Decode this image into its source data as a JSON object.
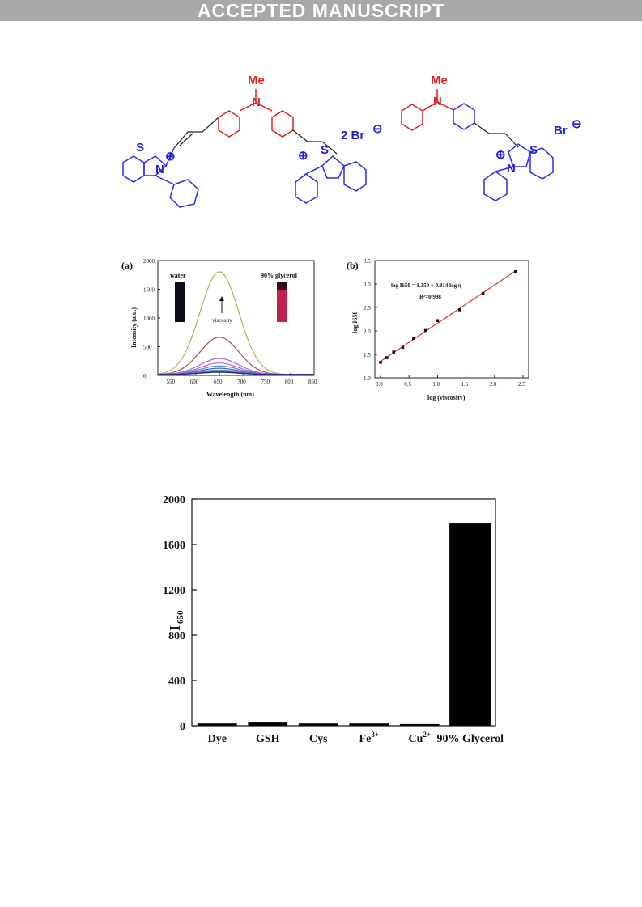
{
  "banner": {
    "text": "ACCEPTED MANUSCRIPT"
  },
  "structures": {
    "left": {
      "me_label": "Me",
      "n_label": "N",
      "s_label": "S",
      "charge": "⊕",
      "counterion": "2 Br",
      "anion": "⊖"
    },
    "right": {
      "me_label": "Me",
      "n_label": "N",
      "s_label": "S",
      "charge": "⊕",
      "counterion": "Br",
      "anion": "⊖"
    }
  },
  "figure_a": {
    "panel_label": "(a)",
    "inset_left": "water",
    "inset_right": "90% glycerol",
    "arrow_label": "viscosity"
  },
  "figure_b": {
    "panel_label": "(b)",
    "equation": "log I650 = 1.350 + 0.814 log η",
    "r2": "R²=0.998"
  },
  "chart_data": [
    {
      "type": "line",
      "panel": "(a)",
      "xlabel": "Wavelength (nm)",
      "ylabel": "Intensity (a.u.)",
      "xlim": [
        520,
        850
      ],
      "ylim": [
        0,
        2000
      ],
      "xticks": [
        550,
        600,
        650,
        700,
        750,
        800,
        850
      ],
      "yticks": [
        0,
        500,
        1000,
        1500,
        2000
      ],
      "series": [
        {
          "peak": 1790,
          "color": "#b5ad5a"
        },
        {
          "peak": 650,
          "color": "#a0524e"
        },
        {
          "peak": 280,
          "color": "#a066c8"
        },
        {
          "peak": 200,
          "color": "#d060d0"
        },
        {
          "peak": 150,
          "color": "#4d8fdc"
        },
        {
          "peak": 110,
          "color": "#5050c8"
        },
        {
          "peak": 80,
          "color": "#40b0b0"
        },
        {
          "peak": 55,
          "color": "#6a3fa0"
        },
        {
          "peak": 40,
          "color": "#202080"
        }
      ]
    },
    {
      "type": "scatter",
      "panel": "(b)",
      "xlabel": "log (viscosity)",
      "ylabel": "log I650",
      "xlim": [
        -0.1,
        2.6
      ],
      "ylim": [
        1.0,
        3.5
      ],
      "xticks": [
        0.0,
        0.5,
        1.0,
        1.5,
        2.0,
        2.5
      ],
      "yticks": [
        1.0,
        1.5,
        2.0,
        2.5,
        3.0,
        3.5
      ],
      "x": [
        0.0,
        0.11,
        0.23,
        0.39,
        0.58,
        0.79,
        1.0,
        1.39,
        1.8,
        2.37
      ],
      "y": [
        1.33,
        1.43,
        1.55,
        1.65,
        1.84,
        2.01,
        2.22,
        2.45,
        2.8,
        3.26
      ],
      "fit": {
        "intercept": 1.35,
        "slope": 0.814
      }
    },
    {
      "type": "bar",
      "categories": [
        "Dye",
        "GSH",
        "Cys",
        "Fe3+",
        "Cu2+",
        "90% Glycerol"
      ],
      "category_labels": [
        {
          "base": "Dye",
          "sup": ""
        },
        {
          "base": "GSH",
          "sup": ""
        },
        {
          "base": "Cys",
          "sup": ""
        },
        {
          "base": "Fe",
          "sup": "3+"
        },
        {
          "base": "Cu",
          "sup": "2+"
        },
        {
          "base": "90%  Glycerol",
          "sup": ""
        }
      ],
      "values": [
        20,
        35,
        20,
        20,
        15,
        1785
      ],
      "ylabel": "I650",
      "ylim": [
        0,
        2000
      ],
      "yticks": [
        0,
        400,
        800,
        1200,
        1600,
        2000
      ]
    }
  ]
}
